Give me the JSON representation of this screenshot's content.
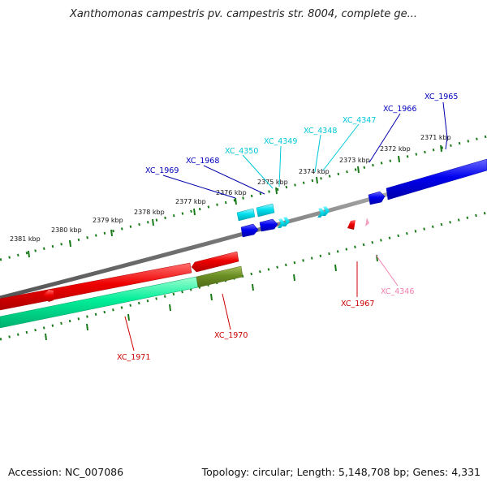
{
  "title": "Xanthomonas campestris pv. campestris str. 8004, complete ge...",
  "accession": "Accession: NC_007086",
  "stats": "Topology: circular; Length: 5,148,708 bp; Genes: 4,331",
  "colors": {
    "backbone": "#808080",
    "tick": "#1a7a1a",
    "forward_gene": "#0000ee",
    "forward_small_gene": "#00d8e8",
    "reverse_gene": "#ee0000",
    "reverse_small_gene": "#f4a0c0",
    "cds_band": "#00ee99",
    "cds_band_dark": "#6b8e23"
  },
  "ticks": [
    {
      "label": "2371 kbp"
    },
    {
      "label": "2372 kbp"
    },
    {
      "label": "2373 kbp"
    },
    {
      "label": "2374 kbp"
    },
    {
      "label": "2375 kbp"
    },
    {
      "label": "2376 kbp"
    },
    {
      "label": "2377 kbp"
    },
    {
      "label": "2378 kbp"
    },
    {
      "label": "2379 kbp"
    },
    {
      "label": "2380 kbp"
    },
    {
      "label": "2381 kbp"
    }
  ],
  "genes": [
    {
      "name": "XC_1965",
      "strand": "forward",
      "color": "#0000bb"
    },
    {
      "name": "XC_1966",
      "strand": "forward",
      "color": "#0000bb"
    },
    {
      "name": "XC_4347",
      "strand": "forward",
      "color": "#00c8d8"
    },
    {
      "name": "XC_4348",
      "strand": "forward",
      "color": "#00c8d8"
    },
    {
      "name": "XC_4349",
      "strand": "forward",
      "color": "#00c8d8"
    },
    {
      "name": "XC_4350",
      "strand": "forward",
      "color": "#00c8d8"
    },
    {
      "name": "XC_1968",
      "strand": "forward",
      "color": "#0000bb"
    },
    {
      "name": "XC_1969",
      "strand": "forward",
      "color": "#0000bb"
    },
    {
      "name": "XC_4346",
      "strand": "reverse",
      "color": "#f080b0"
    },
    {
      "name": "XC_1967",
      "strand": "reverse",
      "color": "#cc0000"
    },
    {
      "name": "XC_1970",
      "strand": "reverse",
      "color": "#cc0000"
    },
    {
      "name": "XC_1971",
      "strand": "reverse",
      "color": "#cc0000"
    }
  ]
}
